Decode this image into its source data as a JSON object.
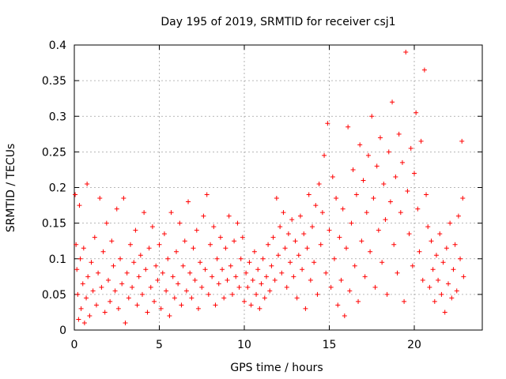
{
  "chart_data": {
    "type": "scatter",
    "title": "Day 195 of 2019, SRMTID for receiver csj1",
    "xlabel": "GPS time / hours",
    "ylabel": "SRMTID / TECUs",
    "xlim": [
      0,
      24
    ],
    "ylim": [
      0,
      0.4
    ],
    "xticks": [
      0,
      5,
      10,
      15,
      20
    ],
    "xtick_labels": [
      "0",
      "5",
      "10",
      "15",
      "20"
    ],
    "yticks": [
      0,
      0.05,
      0.1,
      0.15,
      0.2,
      0.25,
      0.3,
      0.35,
      0.4
    ],
    "ytick_labels": [
      "0",
      "0.05",
      "0.1",
      "0.15",
      "0.2",
      "0.25",
      "0.3",
      "0.35",
      "0.4"
    ],
    "grid": true,
    "marker": "+",
    "color": "#ff0000",
    "series": [
      {
        "name": "SRMTID",
        "points": [
          [
            0.05,
            0.19
          ],
          [
            0.1,
            0.12
          ],
          [
            0.15,
            0.085
          ],
          [
            0.2,
            0.05
          ],
          [
            0.25,
            0.015
          ],
          [
            0.3,
            0.175
          ],
          [
            0.35,
            0.1
          ],
          [
            0.4,
            0.03
          ],
          [
            0.5,
            0.065
          ],
          [
            0.55,
            0.115
          ],
          [
            0.6,
            0.01
          ],
          [
            0.7,
            0.045
          ],
          [
            0.75,
            0.205
          ],
          [
            0.8,
            0.075
          ],
          [
            0.9,
            0.02
          ],
          [
            1.0,
            0.095
          ],
          [
            1.1,
            0.055
          ],
          [
            1.2,
            0.13
          ],
          [
            1.3,
            0.035
          ],
          [
            1.4,
            0.08
          ],
          [
            1.5,
            0.185
          ],
          [
            1.6,
            0.06
          ],
          [
            1.7,
            0.11
          ],
          [
            1.8,
            0.025
          ],
          [
            1.9,
            0.15
          ],
          [
            2.0,
            0.07
          ],
          [
            2.1,
            0.04
          ],
          [
            2.2,
            0.125
          ],
          [
            2.3,
            0.09
          ],
          [
            2.4,
            0.055
          ],
          [
            2.5,
            0.17
          ],
          [
            2.6,
            0.03
          ],
          [
            2.7,
            0.1
          ],
          [
            2.8,
            0.065
          ],
          [
            2.9,
            0.185
          ],
          [
            3.0,
            0.01
          ],
          [
            3.1,
            0.08
          ],
          [
            3.2,
            0.045
          ],
          [
            3.3,
            0.12
          ],
          [
            3.4,
            0.06
          ],
          [
            3.5,
            0.095
          ],
          [
            3.6,
            0.14
          ],
          [
            3.7,
            0.035
          ],
          [
            3.8,
            0.075
          ],
          [
            3.9,
            0.105
          ],
          [
            4.0,
            0.05
          ],
          [
            4.1,
            0.165
          ],
          [
            4.2,
            0.085
          ],
          [
            4.3,
            0.025
          ],
          [
            4.4,
            0.115
          ],
          [
            4.5,
            0.06
          ],
          [
            4.6,
            0.145
          ],
          [
            4.7,
            0.04
          ],
          [
            4.8,
            0.09
          ],
          [
            4.9,
            0.07
          ],
          [
            5.0,
            0.12
          ],
          [
            5.1,
            0.03
          ],
          [
            5.2,
            0.08
          ],
          [
            5.3,
            0.135
          ],
          [
            5.4,
            0.055
          ],
          [
            5.5,
            0.1
          ],
          [
            5.6,
            0.02
          ],
          [
            5.7,
            0.165
          ],
          [
            5.8,
            0.075
          ],
          [
            5.9,
            0.045
          ],
          [
            6.0,
            0.11
          ],
          [
            6.1,
            0.065
          ],
          [
            6.2,
            0.15
          ],
          [
            6.3,
            0.035
          ],
          [
            6.4,
            0.09
          ],
          [
            6.5,
            0.125
          ],
          [
            6.6,
            0.055
          ],
          [
            6.7,
            0.18
          ],
          [
            6.8,
            0.08
          ],
          [
            6.9,
            0.045
          ],
          [
            7.0,
            0.115
          ],
          [
            7.1,
            0.07
          ],
          [
            7.2,
            0.14
          ],
          [
            7.3,
            0.03
          ],
          [
            7.4,
            0.095
          ],
          [
            7.5,
            0.06
          ],
          [
            7.6,
            0.16
          ],
          [
            7.7,
            0.085
          ],
          [
            7.8,
            0.19
          ],
          [
            7.9,
            0.05
          ],
          [
            8.0,
            0.12
          ],
          [
            8.1,
            0.075
          ],
          [
            8.2,
            0.145
          ],
          [
            8.3,
            0.035
          ],
          [
            8.4,
            0.1
          ],
          [
            8.5,
            0.065
          ],
          [
            8.6,
            0.13
          ],
          [
            8.7,
            0.085
          ],
          [
            8.8,
            0.045
          ],
          [
            8.9,
            0.115
          ],
          [
            9.0,
            0.07
          ],
          [
            9.1,
            0.16
          ],
          [
            9.2,
            0.09
          ],
          [
            9.3,
            0.05
          ],
          [
            9.4,
            0.125
          ],
          [
            9.5,
            0.075
          ],
          [
            9.6,
            0.15
          ],
          [
            9.7,
            0.06
          ],
          [
            9.8,
            0.1
          ],
          [
            9.9,
            0.13
          ],
          [
            10.0,
            0.04
          ],
          [
            10.1,
            0.08
          ],
          [
            10.2,
            0.06
          ],
          [
            10.3,
            0.095
          ],
          [
            10.4,
            0.035
          ],
          [
            10.5,
            0.07
          ],
          [
            10.6,
            0.11
          ],
          [
            10.7,
            0.05
          ],
          [
            10.8,
            0.085
          ],
          [
            10.9,
            0.03
          ],
          [
            11.0,
            0.065
          ],
          [
            11.1,
            0.1
          ],
          [
            11.2,
            0.045
          ],
          [
            11.3,
            0.075
          ],
          [
            11.4,
            0.12
          ],
          [
            11.5,
            0.055
          ],
          [
            11.6,
            0.09
          ],
          [
            11.7,
            0.13
          ],
          [
            11.8,
            0.07
          ],
          [
            11.9,
            0.185
          ],
          [
            12.0,
            0.105
          ],
          [
            12.1,
            0.145
          ],
          [
            12.2,
            0.08
          ],
          [
            12.3,
            0.165
          ],
          [
            12.4,
            0.115
          ],
          [
            12.5,
            0.06
          ],
          [
            12.6,
            0.135
          ],
          [
            12.7,
            0.095
          ],
          [
            12.8,
            0.155
          ],
          [
            12.9,
            0.075
          ],
          [
            13.0,
            0.125
          ],
          [
            13.1,
            0.045
          ],
          [
            13.2,
            0.105
          ],
          [
            13.3,
            0.16
          ],
          [
            13.4,
            0.085
          ],
          [
            13.5,
            0.135
          ],
          [
            13.6,
            0.03
          ],
          [
            13.7,
            0.115
          ],
          [
            13.8,
            0.19
          ],
          [
            13.9,
            0.07
          ],
          [
            14.0,
            0.145
          ],
          [
            14.1,
            0.095
          ],
          [
            14.2,
            0.175
          ],
          [
            14.3,
            0.05
          ],
          [
            14.4,
            0.205
          ],
          [
            14.5,
            0.12
          ],
          [
            14.6,
            0.165
          ],
          [
            14.7,
            0.245
          ],
          [
            14.8,
            0.08
          ],
          [
            14.9,
            0.29
          ],
          [
            15.0,
            0.14
          ],
          [
            15.1,
            0.06
          ],
          [
            15.2,
            0.215
          ],
          [
            15.3,
            0.1
          ],
          [
            15.4,
            0.185
          ],
          [
            15.5,
            0.035
          ],
          [
            15.6,
            0.13
          ],
          [
            15.7,
            0.07
          ],
          [
            15.8,
            0.17
          ],
          [
            15.9,
            0.02
          ],
          [
            16.0,
            0.115
          ],
          [
            16.1,
            0.285
          ],
          [
            16.2,
            0.055
          ],
          [
            16.3,
            0.15
          ],
          [
            16.4,
            0.225
          ],
          [
            16.5,
            0.09
          ],
          [
            16.6,
            0.19
          ],
          [
            16.7,
            0.04
          ],
          [
            16.8,
            0.26
          ],
          [
            16.9,
            0.125
          ],
          [
            17.0,
            0.21
          ],
          [
            17.1,
            0.075
          ],
          [
            17.2,
            0.165
          ],
          [
            17.3,
            0.245
          ],
          [
            17.4,
            0.11
          ],
          [
            17.5,
            0.3
          ],
          [
            17.6,
            0.185
          ],
          [
            17.7,
            0.06
          ],
          [
            17.8,
            0.23
          ],
          [
            17.9,
            0.14
          ],
          [
            18.0,
            0.27
          ],
          [
            18.1,
            0.095
          ],
          [
            18.2,
            0.205
          ],
          [
            18.3,
            0.155
          ],
          [
            18.4,
            0.05
          ],
          [
            18.5,
            0.25
          ],
          [
            18.6,
            0.18
          ],
          [
            18.7,
            0.32
          ],
          [
            18.8,
            0.12
          ],
          [
            18.9,
            0.215
          ],
          [
            19.0,
            0.08
          ],
          [
            19.1,
            0.275
          ],
          [
            19.2,
            0.165
          ],
          [
            19.3,
            0.235
          ],
          [
            19.4,
            0.04
          ],
          [
            19.5,
            0.39
          ],
          [
            19.6,
            0.195
          ],
          [
            19.7,
            0.135
          ],
          [
            19.8,
            0.255
          ],
          [
            19.9,
            0.09
          ],
          [
            20.0,
            0.22
          ],
          [
            20.1,
            0.305
          ],
          [
            20.2,
            0.17
          ],
          [
            20.3,
            0.11
          ],
          [
            20.4,
            0.265
          ],
          [
            20.5,
            0.07
          ],
          [
            20.6,
            0.365
          ],
          [
            20.7,
            0.19
          ],
          [
            20.8,
            0.145
          ],
          [
            20.9,
            0.06
          ],
          [
            21.0,
            0.125
          ],
          [
            21.1,
            0.085
          ],
          [
            21.2,
            0.04
          ],
          [
            21.3,
            0.105
          ],
          [
            21.4,
            0.07
          ],
          [
            21.5,
            0.135
          ],
          [
            21.6,
            0.05
          ],
          [
            21.7,
            0.095
          ],
          [
            21.8,
            0.025
          ],
          [
            21.9,
            0.115
          ],
          [
            22.0,
            0.065
          ],
          [
            22.1,
            0.15
          ],
          [
            22.2,
            0.045
          ],
          [
            22.3,
            0.085
          ],
          [
            22.4,
            0.12
          ],
          [
            22.5,
            0.055
          ],
          [
            22.6,
            0.16
          ],
          [
            22.7,
            0.1
          ],
          [
            22.8,
            0.265
          ],
          [
            22.85,
            0.185
          ],
          [
            22.9,
            0.075
          ]
        ]
      }
    ]
  }
}
